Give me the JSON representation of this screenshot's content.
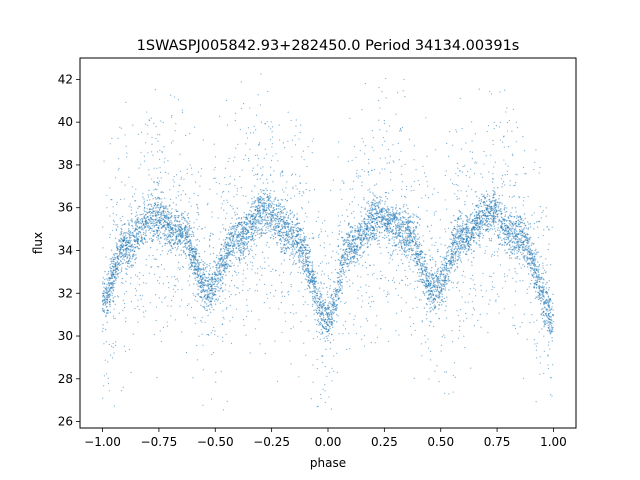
{
  "chart_data": {
    "type": "scatter",
    "title": "1SWASPJ005842.93+282450.0 Period 34134.00391s",
    "xlabel": "phase",
    "ylabel": "flux",
    "xlim": [
      -1.1,
      1.1
    ],
    "ylim": [
      25.7,
      43.0
    ],
    "xticks": [
      -1.0,
      -0.75,
      -0.5,
      -0.25,
      0.0,
      0.25,
      0.5,
      0.75,
      1.0
    ],
    "xtick_labels": [
      "−1.00",
      "−0.75",
      "−0.50",
      "−0.25",
      "0.00",
      "0.25",
      "0.50",
      "0.75",
      "1.00"
    ],
    "yticks": [
      26,
      28,
      30,
      32,
      34,
      36,
      38,
      40,
      42
    ],
    "ytick_labels": [
      "26",
      "28",
      "30",
      "32",
      "34",
      "36",
      "38",
      "40",
      "42"
    ],
    "grid": false,
    "legend": "none",
    "marker_color": "#1f77b4",
    "series": [
      {
        "description_points": [
          {
            "x": -1.0,
            "y": 31.6
          },
          {
            "x": -0.9,
            "y": 34.2
          },
          {
            "x": -0.77,
            "y": 35.6
          },
          {
            "x": -0.65,
            "y": 34.8
          },
          {
            "x": -0.53,
            "y": 32.2
          },
          {
            "x": -0.4,
            "y": 34.6
          },
          {
            "x": -0.28,
            "y": 35.8
          },
          {
            "x": -0.15,
            "y": 34.6
          },
          {
            "x": 0.0,
            "y": 30.9
          },
          {
            "x": 0.1,
            "y": 34.2
          },
          {
            "x": 0.23,
            "y": 35.6
          },
          {
            "x": 0.35,
            "y": 34.8
          },
          {
            "x": 0.47,
            "y": 32.2
          },
          {
            "x": 0.6,
            "y": 34.6
          },
          {
            "x": 0.72,
            "y": 35.8
          },
          {
            "x": 0.85,
            "y": 34.6
          },
          {
            "x": 1.0,
            "y": 30.9
          }
        ]
      }
    ]
  }
}
